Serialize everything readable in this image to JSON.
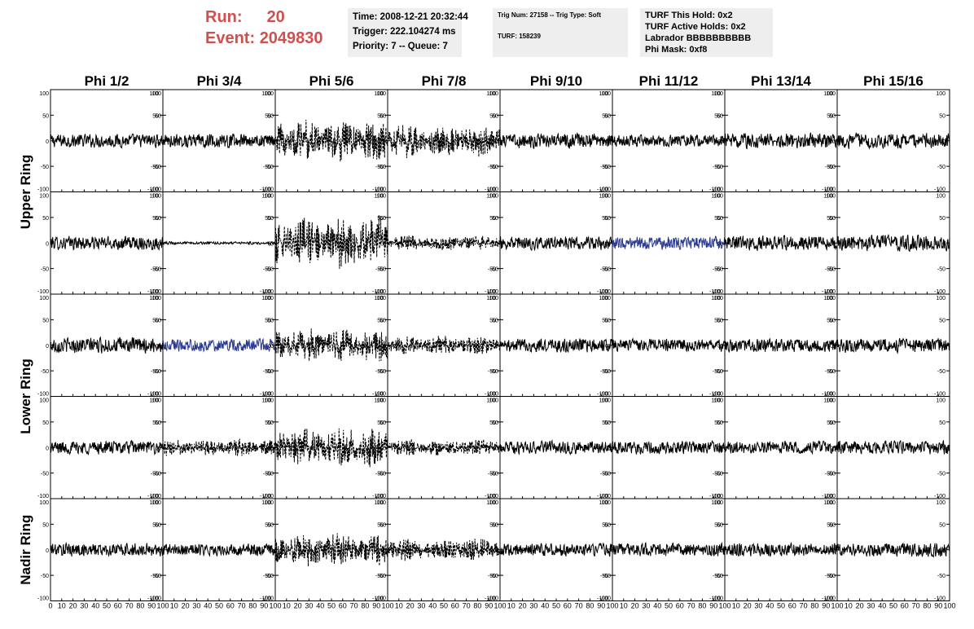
{
  "header": {
    "run_label": "Run:",
    "run_value": "20",
    "event_label": "Event:",
    "event_value": "2049830"
  },
  "info_panel_1": [
    "Time: 2008-12-21 20:32:44",
    "Trigger: 222.104274 ms",
    "Priority: 7 -- Queue: 7"
  ],
  "info_panel_2": {
    "line1": "Trig Num: 27158 -- Trig Type: Soft",
    "line2": "TURF: 158239"
  },
  "info_panel_3": [
    "TURF This Hold: 0x2",
    "TURF Active Holds: 0x2",
    "Labrador BBBBBBBBBB",
    "Phi Mask: 0xf8"
  ],
  "colors": {
    "trace": "#000000",
    "highlight": "#2a3a8c",
    "header_text": "#d0504f",
    "panel_bg": "#eeeeee"
  },
  "chart_data": {
    "type": "line",
    "columns": [
      "Phi 1/2",
      "Phi 3/4",
      "Phi 5/6",
      "Phi 7/8",
      "Phi 9/10",
      "Phi 11/12",
      "Phi 13/14",
      "Phi 15/16"
    ],
    "row_groups": [
      {
        "label": "Upper Ring",
        "rows": [
          0,
          1
        ]
      },
      {
        "label": "Lower Ring",
        "rows": [
          2,
          3
        ]
      },
      {
        "label": "Nadir Ring",
        "rows": [
          4
        ]
      }
    ],
    "xlim": [
      0,
      100
    ],
    "ylim": [
      -100,
      100
    ],
    "x_ticks": [
      "0",
      "10",
      "20",
      "30",
      "40",
      "50",
      "60",
      "70",
      "80",
      "90",
      "100"
    ],
    "y_ticks": [
      "100",
      "50",
      "0",
      "-50",
      "-100"
    ],
    "samples_per_trace": 260,
    "panels": [
      [
        {
          "amplitude": 15,
          "style": "solid",
          "color": "trace"
        },
        {
          "amplitude": 15,
          "style": "solid",
          "color": "trace"
        },
        {
          "amplitude": 48,
          "style": "dashed",
          "color": "trace"
        },
        {
          "amplitude": 38,
          "style": "dashed",
          "color": "trace"
        },
        {
          "amplitude": 16,
          "style": "solid",
          "color": "trace"
        },
        {
          "amplitude": 13,
          "style": "solid",
          "color": "trace"
        },
        {
          "amplitude": 17,
          "style": "solid",
          "color": "trace"
        },
        {
          "amplitude": 17,
          "style": "solid",
          "color": "trace"
        }
      ],
      [
        {
          "amplitude": 15,
          "style": "solid",
          "color": "trace"
        },
        {
          "amplitude": 3,
          "style": "solid",
          "color": "trace"
        },
        {
          "amplitude": 62,
          "style": "dashed",
          "color": "trace"
        },
        {
          "amplitude": 18,
          "style": "dashed",
          "color": "trace"
        },
        {
          "amplitude": 15,
          "style": "solid",
          "color": "trace"
        },
        {
          "amplitude": 14,
          "style": "solid",
          "color": "highlight"
        },
        {
          "amplitude": 16,
          "style": "solid",
          "color": "trace"
        },
        {
          "amplitude": 18,
          "style": "solid",
          "color": "trace"
        }
      ],
      [
        {
          "amplitude": 17,
          "style": "solid",
          "color": "trace"
        },
        {
          "amplitude": 14,
          "style": "solid",
          "color": "highlight"
        },
        {
          "amplitude": 40,
          "style": "dashed",
          "color": "trace"
        },
        {
          "amplitude": 22,
          "style": "dashed",
          "color": "trace"
        },
        {
          "amplitude": 15,
          "style": "solid",
          "color": "trace"
        },
        {
          "amplitude": 14,
          "style": "solid",
          "color": "trace"
        },
        {
          "amplitude": 15,
          "style": "solid",
          "color": "trace"
        },
        {
          "amplitude": 16,
          "style": "solid",
          "color": "trace"
        }
      ],
      [
        {
          "amplitude": 15,
          "style": "solid",
          "color": "trace"
        },
        {
          "amplitude": 20,
          "style": "dashed",
          "color": "trace"
        },
        {
          "amplitude": 48,
          "style": "dashed",
          "color": "trace"
        },
        {
          "amplitude": 20,
          "style": "dashed",
          "color": "trace"
        },
        {
          "amplitude": 14,
          "style": "solid",
          "color": "trace"
        },
        {
          "amplitude": 14,
          "style": "solid",
          "color": "trace"
        },
        {
          "amplitude": 14,
          "style": "solid",
          "color": "trace"
        },
        {
          "amplitude": 15,
          "style": "solid",
          "color": "trace"
        }
      ],
      [
        {
          "amplitude": 15,
          "style": "solid",
          "color": "trace"
        },
        {
          "amplitude": 13,
          "style": "solid",
          "color": "trace"
        },
        {
          "amplitude": 38,
          "style": "dashed",
          "color": "trace"
        },
        {
          "amplitude": 28,
          "style": "dashed",
          "color": "trace"
        },
        {
          "amplitude": 14,
          "style": "solid",
          "color": "trace"
        },
        {
          "amplitude": 15,
          "style": "solid",
          "color": "trace"
        },
        {
          "amplitude": 14,
          "style": "solid",
          "color": "trace"
        },
        {
          "amplitude": 15,
          "style": "solid",
          "color": "trace"
        }
      ]
    ]
  }
}
